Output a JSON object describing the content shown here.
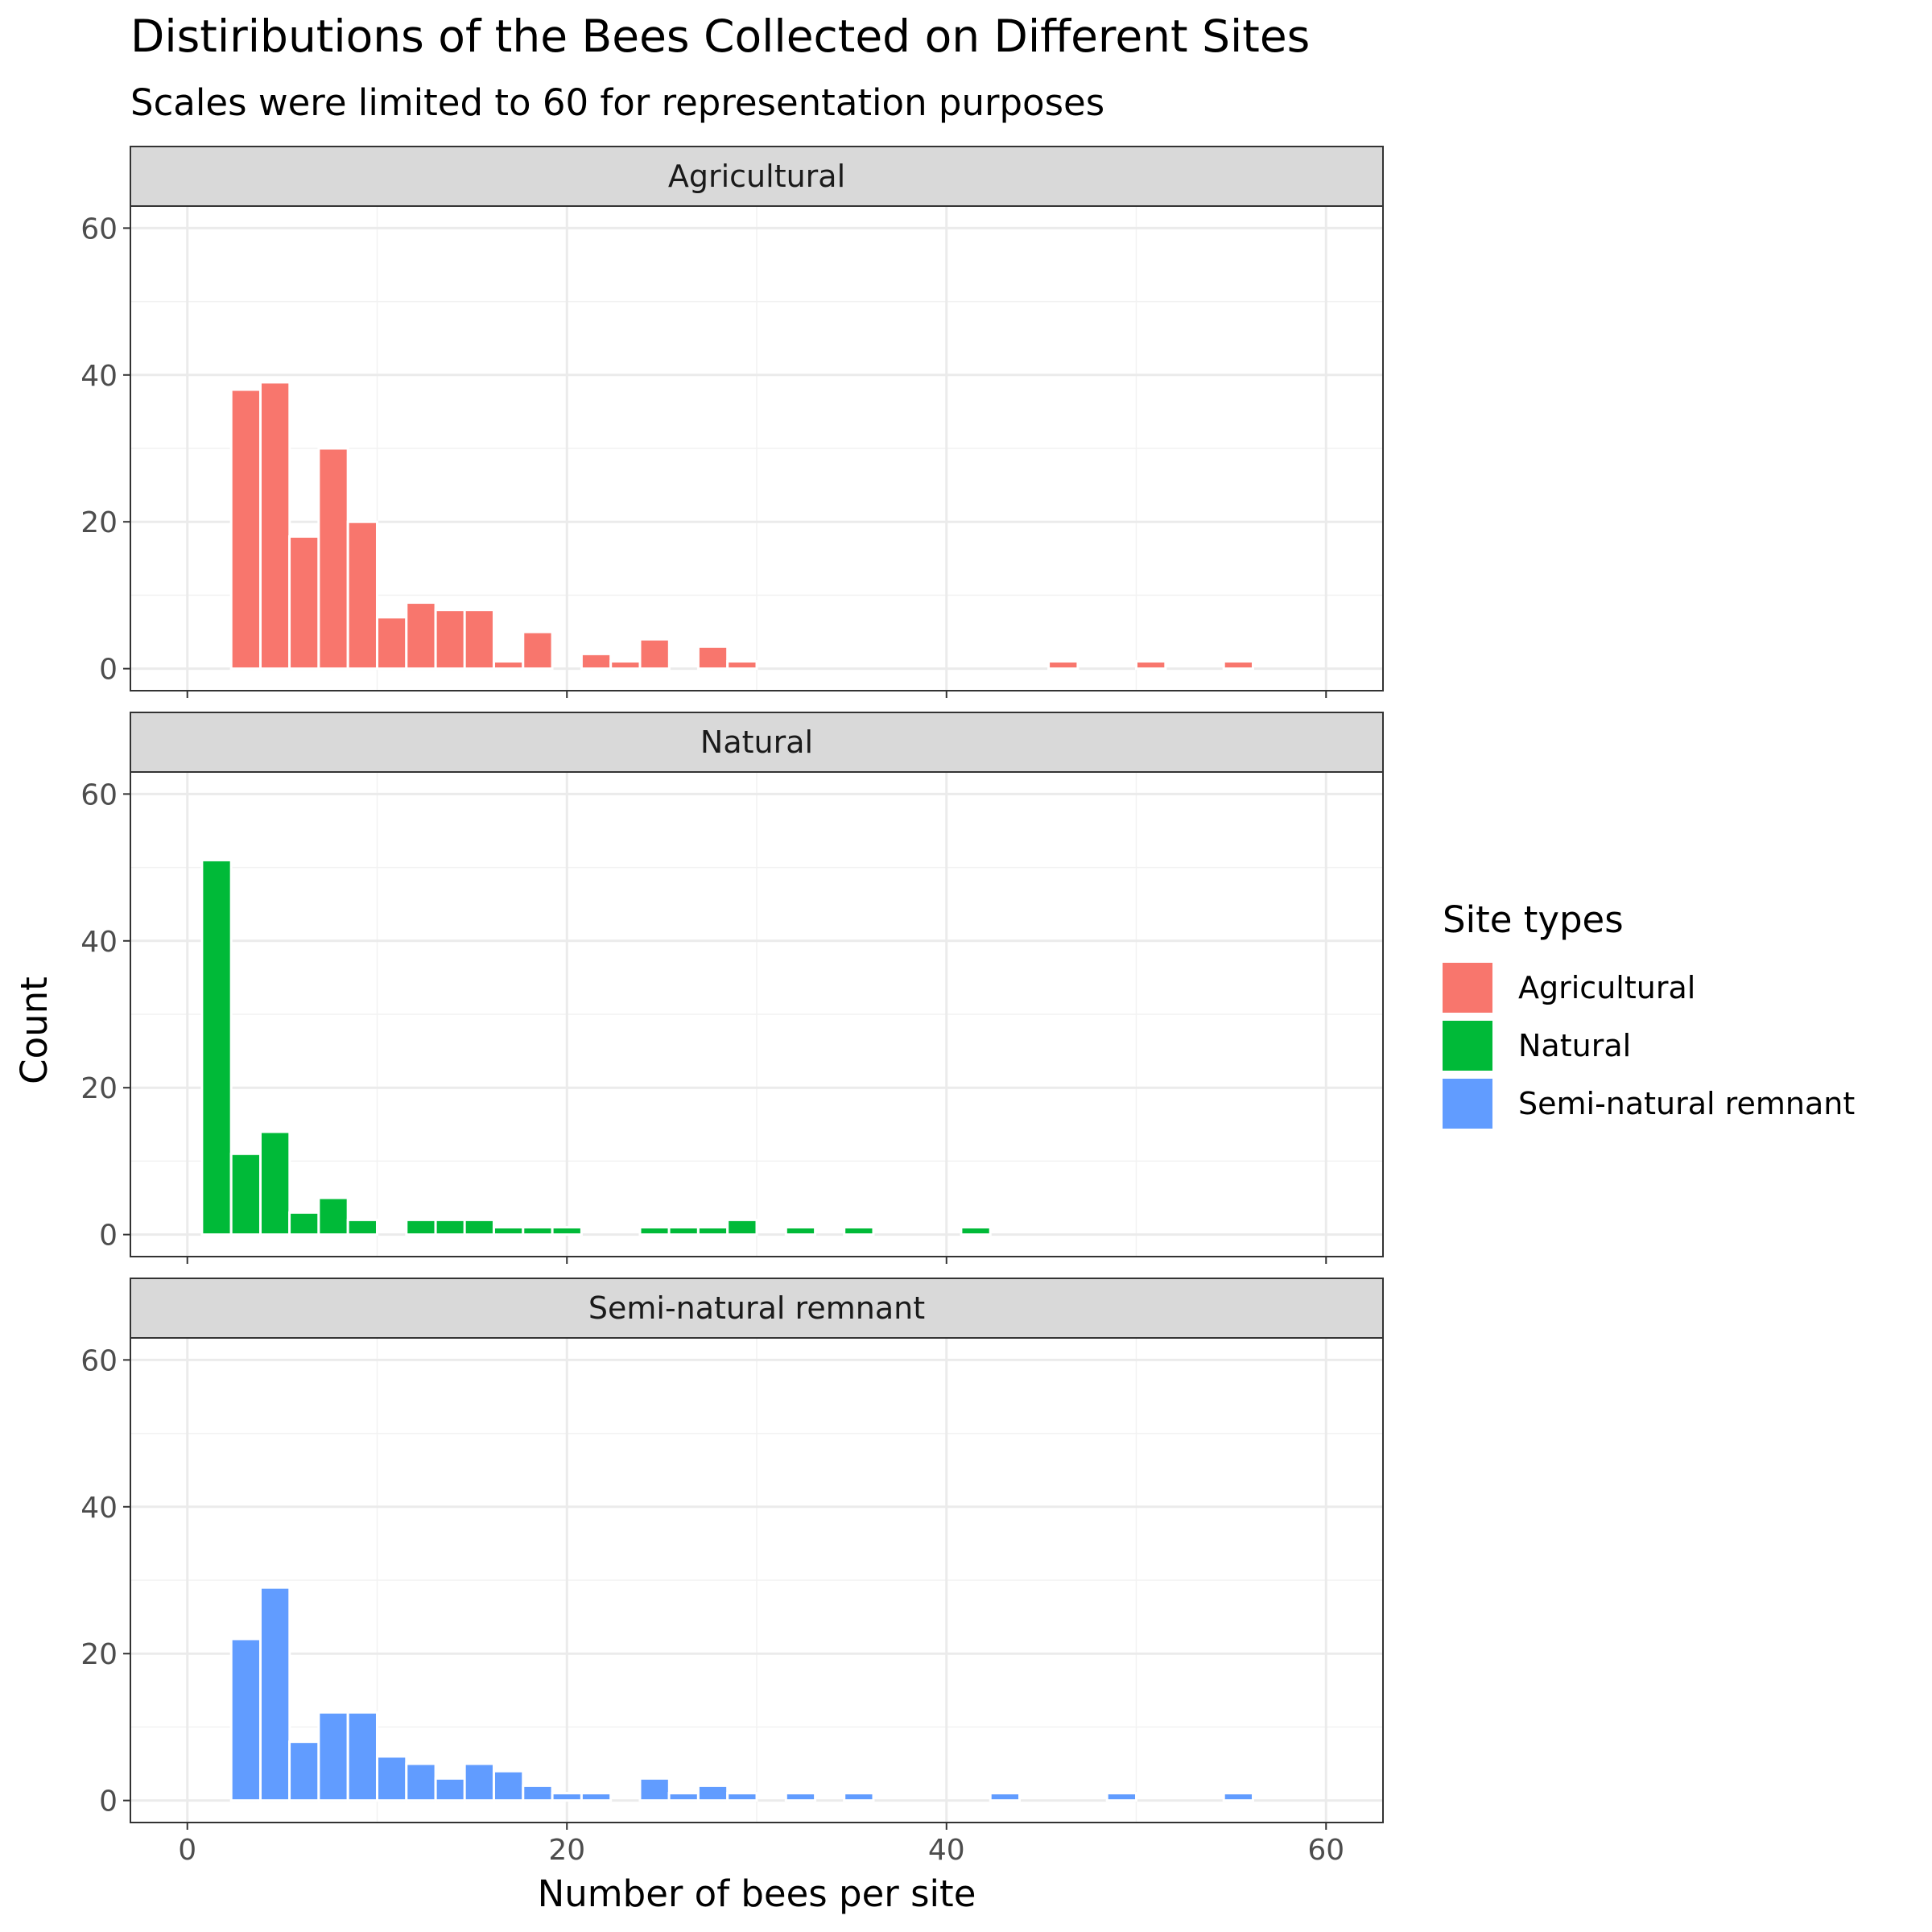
{
  "chart_data": {
    "type": "bar",
    "title": "Distiributions of the Bees Collected on Different Sites",
    "subtitle": "Scales were limited to 60 for representation purposes",
    "xlabel": "Number of bees per site",
    "ylabel": "Count",
    "xlim": [
      -3,
      63
    ],
    "ylim": [
      -3,
      63
    ],
    "x_ticks": [
      0,
      20,
      40,
      60
    ],
    "y_ticks": [
      0,
      20,
      40,
      60
    ],
    "bin_width": 1.54,
    "grid": true,
    "legend": {
      "title": "Site types",
      "placement": "right",
      "entries": [
        "Agricultural",
        "Natural",
        "Semi-natural remnant"
      ]
    },
    "colors": {
      "Agricultural": "#F8766D",
      "Natural": "#00BA38",
      "Semi-natural remnant": "#619CFF"
    },
    "series": [
      {
        "name": "Agricultural",
        "bin_centers": [
          3.08,
          4.62,
          6.15,
          7.69,
          9.23,
          10.77,
          12.31,
          13.85,
          15.38,
          16.92,
          18.46,
          21.54,
          23.08,
          24.62,
          27.69,
          29.23,
          46.15,
          50.77,
          55.38
        ],
        "counts": [
          38,
          39,
          18,
          30,
          20,
          7,
          9,
          8,
          8,
          1,
          5,
          2,
          1,
          4,
          3,
          1,
          1,
          1,
          1
        ]
      },
      {
        "name": "Natural",
        "bin_centers": [
          1.54,
          3.08,
          4.62,
          6.15,
          7.69,
          9.23,
          12.31,
          13.85,
          15.38,
          16.92,
          18.46,
          20.0,
          24.62,
          26.15,
          27.69,
          29.23,
          32.31,
          35.38,
          41.54
        ],
        "counts": [
          51,
          11,
          14,
          3,
          5,
          2,
          2,
          2,
          2,
          1,
          1,
          1,
          1,
          1,
          1,
          2,
          1,
          1,
          1
        ]
      },
      {
        "name": "Semi-natural remnant",
        "bin_centers": [
          3.08,
          4.62,
          6.15,
          7.69,
          9.23,
          10.77,
          12.31,
          13.85,
          15.38,
          16.92,
          18.46,
          20.0,
          21.54,
          24.62,
          26.15,
          27.69,
          29.23,
          32.31,
          35.38,
          43.08,
          49.23,
          55.38
        ],
        "counts": [
          22,
          29,
          8,
          12,
          12,
          6,
          5,
          3,
          5,
          4,
          2,
          1,
          1,
          3,
          1,
          2,
          1,
          1,
          1,
          1,
          1,
          1
        ]
      }
    ]
  }
}
